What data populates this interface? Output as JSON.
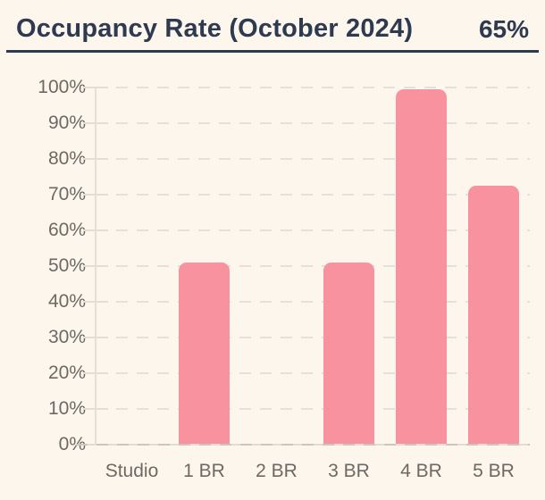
{
  "header": {
    "title": "Occupancy Rate (October 2024)",
    "value": "65%"
  },
  "chart_data": {
    "type": "bar",
    "title": "Occupancy Rate (October 2024)",
    "headline_value": "65%",
    "categories": [
      "Studio",
      "1 BR",
      "2 BR",
      "3 BR",
      "4 BR",
      "5 BR"
    ],
    "values": [
      0,
      51,
      0,
      51,
      99.5,
      72.5
    ],
    "xlabel": "",
    "ylabel": "",
    "ylim": [
      0,
      100
    ],
    "ytick_step": 10,
    "yticks": [
      "0%",
      "10%",
      "20%",
      "30%",
      "40%",
      "50%",
      "60%",
      "70%",
      "80%",
      "90%",
      "100%"
    ],
    "grid": "horizontal-dashed",
    "legend": "none",
    "bar_color": "#f8929f",
    "background_color": "#fdf6ed",
    "accent_color": "#2d3a50",
    "tick_label_color": "#6c6964"
  }
}
